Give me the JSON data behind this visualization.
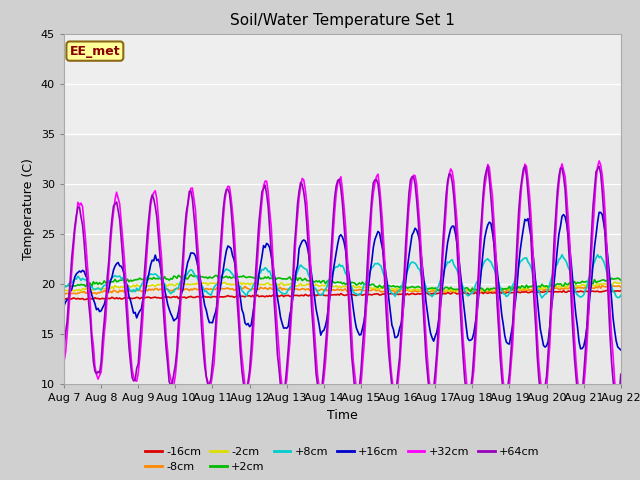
{
  "title": "Soil/Water Temperature Set 1",
  "xlabel": "Time",
  "ylabel": "Temperature (C)",
  "ylim": [
    10,
    45
  ],
  "xlim": [
    0,
    360
  ],
  "fig_bg": "#d0d0d0",
  "plot_bg": "#e8e8e8",
  "annotation_text": "EE_met",
  "annotation_bg": "#ffff99",
  "annotation_border": "#8b6914",
  "series": [
    {
      "label": "-16cm",
      "color": "#dd0000",
      "lw": 1.2
    },
    {
      "label": "-8cm",
      "color": "#ff8800",
      "lw": 1.2
    },
    {
      "label": "-2cm",
      "color": "#dddd00",
      "lw": 1.2
    },
    {
      "label": "+2cm",
      "color": "#00bb00",
      "lw": 1.2
    },
    {
      "label": "+8cm",
      "color": "#00cccc",
      "lw": 1.2
    },
    {
      "label": "+16cm",
      "color": "#0000cc",
      "lw": 1.2
    },
    {
      "label": "+32cm",
      "color": "#ff00ff",
      "lw": 1.2
    },
    {
      "label": "+64cm",
      "color": "#9900bb",
      "lw": 1.2
    }
  ],
  "xtick_labels": [
    "Aug 7",
    "Aug 8",
    "Aug 9",
    "Aug 10",
    "Aug 11",
    "Aug 12",
    "Aug 13",
    "Aug 14",
    "Aug 15",
    "Aug 16",
    "Aug 17",
    "Aug 18",
    "Aug 19",
    "Aug 20",
    "Aug 21",
    "Aug 22"
  ],
  "xtick_pos": [
    0,
    24,
    48,
    72,
    96,
    120,
    144,
    168,
    192,
    216,
    240,
    264,
    288,
    312,
    336,
    360
  ]
}
